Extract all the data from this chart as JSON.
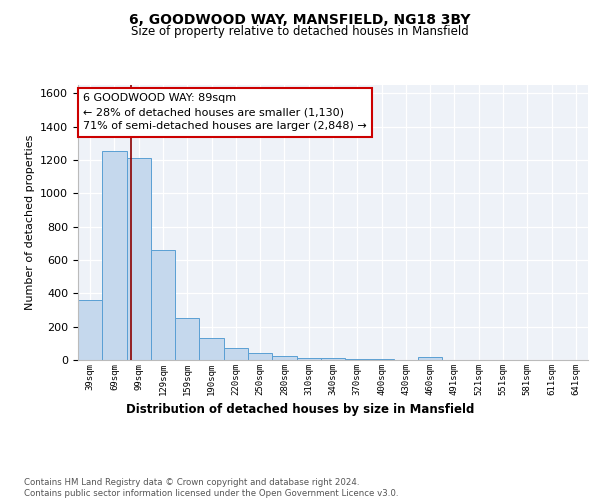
{
  "title1": "6, GOODWOOD WAY, MANSFIELD, NG18 3BY",
  "title2": "Size of property relative to detached houses in Mansfield",
  "xlabel": "Distribution of detached houses by size in Mansfield",
  "ylabel": "Number of detached properties",
  "categories": [
    "39sqm",
    "69sqm",
    "99sqm",
    "129sqm",
    "159sqm",
    "190sqm",
    "220sqm",
    "250sqm",
    "280sqm",
    "310sqm",
    "340sqm",
    "370sqm",
    "400sqm",
    "430sqm",
    "460sqm",
    "491sqm",
    "521sqm",
    "551sqm",
    "581sqm",
    "611sqm",
    "641sqm"
  ],
  "values": [
    360,
    1255,
    1210,
    660,
    250,
    130,
    75,
    40,
    25,
    15,
    10,
    8,
    5,
    3,
    20,
    2,
    1,
    0,
    0,
    0,
    0
  ],
  "bar_color": "#c5d8ed",
  "bar_edge_color": "#5a9fd4",
  "vline_color": "#8b0000",
  "annotation_text": "6 GOODWOOD WAY: 89sqm\n← 28% of detached houses are smaller (1,130)\n71% of semi-detached houses are larger (2,848) →",
  "annotation_box_color": "#ffffff",
  "annotation_box_edge": "#cc0000",
  "footnote": "Contains HM Land Registry data © Crown copyright and database right 2024.\nContains public sector information licensed under the Open Government Licence v3.0.",
  "ylim": [
    0,
    1650
  ],
  "background_color": "#eef2f8"
}
